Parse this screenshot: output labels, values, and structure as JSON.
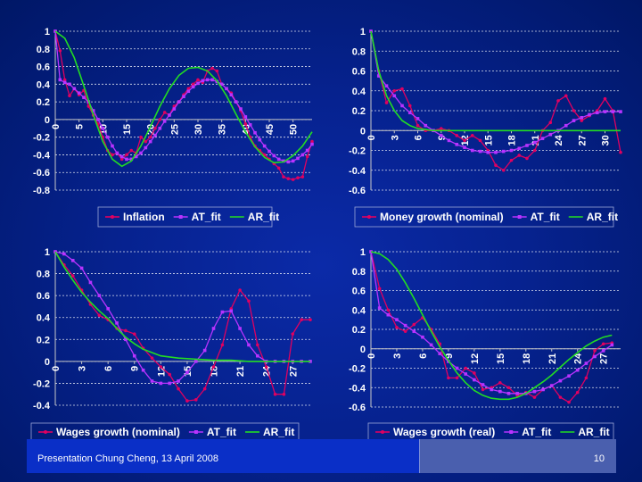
{
  "footer": {
    "presentation": "Presentation Chung Cheng, 13 April 2008",
    "page_number": "10"
  },
  "colors": {
    "background": "#0a23a8",
    "series_primary": "#e00060",
    "series_at_fit": "#b833ff",
    "series_ar_fit": "#22dd22",
    "axis_text": "#ffffff",
    "gridline": "#ffffff"
  },
  "chart_data": [
    {
      "type": "line",
      "title": "",
      "x_ticks": [
        "0",
        "5",
        "10",
        "15",
        "20",
        "25",
        "30",
        "35",
        "40",
        "45",
        "50"
      ],
      "x_tick_values": [
        0,
        5,
        10,
        15,
        20,
        25,
        30,
        35,
        40,
        45,
        50
      ],
      "xlim": [
        0,
        54
      ],
      "ylim": [
        -0.8,
        1
      ],
      "y_ticks": [
        "-0.8",
        "-0.6",
        "-0.4",
        "-0.2",
        "0",
        "0.2",
        "0.4",
        "0.6",
        "0.8",
        "1"
      ],
      "y_tick_values": [
        -0.8,
        -0.6,
        -0.4,
        -0.2,
        0,
        0.2,
        0.4,
        0.6,
        0.8,
        1
      ],
      "series": [
        {
          "name": "Inflation",
          "color": "#e00060",
          "marker": "dot",
          "x": [
            0,
            1,
            2,
            3,
            4,
            5,
            6,
            7,
            8,
            9,
            10,
            11,
            12,
            13,
            14,
            15,
            16,
            17,
            18,
            19,
            20,
            21,
            22,
            23,
            24,
            25,
            26,
            27,
            28,
            29,
            30,
            31,
            32,
            33,
            34,
            35,
            36,
            37,
            38,
            39,
            40,
            41,
            42,
            43,
            44,
            45,
            46,
            47,
            48,
            49,
            50,
            51,
            52,
            53,
            54
          ],
          "y": [
            1,
            0.78,
            0.45,
            0.27,
            0.35,
            0.28,
            0.33,
            0.15,
            0.05,
            -0.05,
            -0.2,
            -0.35,
            -0.4,
            -0.38,
            -0.45,
            -0.4,
            -0.35,
            -0.38,
            -0.2,
            -0.25,
            -0.2,
            -0.1,
            0.0,
            0.08,
            0.05,
            0.15,
            0.2,
            0.28,
            0.35,
            0.4,
            0.45,
            0.42,
            0.55,
            0.58,
            0.55,
            0.4,
            0.35,
            0.3,
            0.2,
            0.1,
            -0.05,
            -0.2,
            -0.3,
            -0.35,
            -0.4,
            -0.45,
            -0.5,
            -0.55,
            -0.65,
            -0.67,
            -0.68,
            -0.66,
            -0.65,
            -0.42,
            -0.25
          ]
        },
        {
          "name": "AT_fit",
          "color": "#b833ff",
          "marker": "square",
          "x": [
            0,
            1,
            2,
            3,
            4,
            5,
            6,
            7,
            8,
            9,
            10,
            11,
            12,
            13,
            14,
            15,
            16,
            17,
            18,
            19,
            20,
            21,
            22,
            23,
            24,
            25,
            26,
            27,
            28,
            29,
            30,
            31,
            32,
            33,
            34,
            35,
            36,
            37,
            38,
            39,
            40,
            41,
            42,
            43,
            44,
            45,
            46,
            47,
            48,
            49,
            50,
            51,
            52,
            53,
            54
          ],
          "y": [
            1,
            0.45,
            0.42,
            0.4,
            0.35,
            0.3,
            0.25,
            0.2,
            0.1,
            0.0,
            -0.1,
            -0.2,
            -0.3,
            -0.38,
            -0.42,
            -0.45,
            -0.45,
            -0.42,
            -0.38,
            -0.32,
            -0.25,
            -0.18,
            -0.1,
            -0.02,
            0.05,
            0.12,
            0.2,
            0.26,
            0.32,
            0.37,
            0.41,
            0.44,
            0.45,
            0.45,
            0.43,
            0.4,
            0.35,
            0.28,
            0.2,
            0.12,
            0.03,
            -0.06,
            -0.15,
            -0.23,
            -0.3,
            -0.36,
            -0.41,
            -0.45,
            -0.47,
            -0.48,
            -0.47,
            -0.44,
            -0.4,
            -0.35,
            -0.28
          ]
        },
        {
          "name": "AR_fit",
          "color": "#22dd22",
          "marker": "none",
          "x": [
            0,
            2,
            4,
            6,
            8,
            10,
            12,
            14,
            16,
            18,
            20,
            22,
            24,
            26,
            28,
            30,
            32,
            34,
            36,
            38,
            40,
            42,
            44,
            46,
            48,
            50,
            52,
            54
          ],
          "y": [
            1,
            0.92,
            0.7,
            0.38,
            0.05,
            -0.25,
            -0.45,
            -0.53,
            -0.47,
            -0.3,
            -0.08,
            0.15,
            0.35,
            0.5,
            0.58,
            0.59,
            0.55,
            0.44,
            0.27,
            0.06,
            -0.14,
            -0.31,
            -0.43,
            -0.49,
            -0.48,
            -0.41,
            -0.3,
            -0.14
          ]
        }
      ],
      "legend": [
        "Inflation",
        "AT_fit",
        "AR_fit"
      ]
    },
    {
      "type": "line",
      "title": "",
      "x_ticks": [
        "0",
        "3",
        "6",
        "9",
        "12",
        "15",
        "18",
        "21",
        "24",
        "27",
        "30"
      ],
      "x_tick_values": [
        0,
        3,
        6,
        9,
        12,
        15,
        18,
        21,
        24,
        27,
        30
      ],
      "xlim": [
        0,
        32
      ],
      "ylim": [
        -0.6,
        1
      ],
      "y_ticks": [
        "-0.6",
        "-0.4",
        "-0.2",
        "0",
        "0.2",
        "0.4",
        "0.6",
        "0.8",
        "1"
      ],
      "y_tick_values": [
        -0.6,
        -0.4,
        -0.2,
        0,
        0.2,
        0.4,
        0.6,
        0.8,
        1
      ],
      "series": [
        {
          "name": "Money growth (nominal)",
          "color": "#e00060",
          "marker": "dot",
          "x": [
            0,
            1,
            2,
            3,
            4,
            5,
            6,
            7,
            8,
            9,
            10,
            11,
            12,
            13,
            14,
            15,
            16,
            17,
            18,
            19,
            20,
            21,
            22,
            23,
            24,
            25,
            26,
            27,
            28,
            29,
            30,
            31,
            32
          ],
          "y": [
            1,
            0.6,
            0.28,
            0.4,
            0.42,
            0.25,
            0.05,
            0.0,
            0.0,
            0.02,
            0.0,
            -0.05,
            -0.1,
            -0.05,
            -0.1,
            -0.2,
            -0.35,
            -0.4,
            -0.3,
            -0.25,
            -0.28,
            -0.2,
            0.0,
            0.08,
            0.3,
            0.35,
            0.2,
            0.1,
            0.15,
            0.2,
            0.32,
            0.2,
            -0.22
          ]
        },
        {
          "name": "AT_fit",
          "color": "#b833ff",
          "marker": "square",
          "x": [
            0,
            1,
            2,
            3,
            4,
            5,
            6,
            7,
            8,
            9,
            10,
            11,
            12,
            13,
            14,
            15,
            16,
            17,
            18,
            19,
            20,
            21,
            22,
            23,
            24,
            25,
            26,
            27,
            28,
            29,
            30,
            31,
            32
          ],
          "y": [
            1,
            0.55,
            0.45,
            0.35,
            0.25,
            0.18,
            0.12,
            0.05,
            0.0,
            -0.05,
            -0.1,
            -0.14,
            -0.17,
            -0.2,
            -0.21,
            -0.22,
            -0.22,
            -0.21,
            -0.2,
            -0.18,
            -0.15,
            -0.12,
            -0.08,
            -0.04,
            0.0,
            0.05,
            0.1,
            0.13,
            0.16,
            0.18,
            0.19,
            0.19,
            0.19
          ]
        },
        {
          "name": "AR_fit",
          "color": "#22dd22",
          "marker": "none",
          "x": [
            0,
            1,
            2,
            3,
            4,
            5,
            6,
            7,
            8,
            9,
            10,
            12,
            14,
            16,
            18,
            20,
            22,
            24,
            26,
            28,
            30,
            32
          ],
          "y": [
            1,
            0.6,
            0.35,
            0.2,
            0.1,
            0.05,
            0.02,
            0.01,
            0.0,
            0.0,
            0.0,
            0.0,
            0.0,
            0.0,
            0.0,
            0.0,
            0.0,
            0.0,
            0.0,
            0.0,
            0.0,
            0.0
          ]
        }
      ],
      "legend": [
        "Money growth (nominal)",
        "AT_fit",
        "AR_fit"
      ]
    },
    {
      "type": "line",
      "title": "",
      "x_ticks": [
        "0",
        "3",
        "6",
        "9",
        "12",
        "15",
        "18",
        "21",
        "24",
        "27"
      ],
      "x_tick_values": [
        0,
        3,
        6,
        9,
        12,
        15,
        18,
        21,
        24,
        27
      ],
      "xlim": [
        0,
        29
      ],
      "ylim": [
        -0.4,
        1
      ],
      "y_ticks": [
        "-0.4",
        "-0.2",
        "0",
        "0.2",
        "0.4",
        "0.6",
        "0.8",
        "1"
      ],
      "y_tick_values": [
        -0.4,
        -0.2,
        0,
        0.2,
        0.4,
        0.6,
        0.8,
        1
      ],
      "series": [
        {
          "name": "Wages growth (nominal)",
          "color": "#e00060",
          "marker": "dot",
          "x": [
            0,
            1,
            2,
            3,
            4,
            5,
            6,
            7,
            8,
            9,
            10,
            11,
            12,
            13,
            14,
            15,
            16,
            17,
            18,
            19,
            20,
            21,
            22,
            23,
            24,
            25,
            26,
            27,
            28,
            29
          ],
          "y": [
            1,
            0.88,
            0.78,
            0.65,
            0.52,
            0.42,
            0.38,
            0.3,
            0.28,
            0.25,
            0.12,
            0.03,
            -0.05,
            -0.12,
            -0.25,
            -0.36,
            -0.35,
            -0.25,
            -0.05,
            0.15,
            0.48,
            0.65,
            0.55,
            0.15,
            -0.05,
            -0.3,
            -0.3,
            0.25,
            0.38,
            0.38
          ]
        },
        {
          "name": "AT_fit",
          "color": "#b833ff",
          "marker": "square",
          "x": [
            0,
            1,
            2,
            3,
            4,
            5,
            6,
            7,
            8,
            9,
            10,
            11,
            12,
            13,
            14,
            15,
            16,
            17,
            18,
            19,
            20,
            21,
            22,
            23,
            24,
            25,
            26,
            27,
            28,
            29
          ],
          "y": [
            1,
            0.98,
            0.92,
            0.85,
            0.72,
            0.6,
            0.48,
            0.35,
            0.2,
            0.05,
            -0.08,
            -0.18,
            -0.2,
            -0.2,
            -0.18,
            -0.1,
            0.0,
            0.1,
            0.3,
            0.45,
            0.46,
            0.3,
            0.15,
            0.05,
            0.0,
            0.0,
            0.0,
            0.0,
            0.0,
            0.0
          ]
        },
        {
          "name": "AR_fit",
          "color": "#22dd22",
          "marker": "none",
          "x": [
            0,
            1,
            2,
            3,
            4,
            5,
            6,
            7,
            8,
            9,
            10,
            11,
            12,
            14,
            16,
            18,
            20,
            22,
            24,
            26,
            29
          ],
          "y": [
            1,
            0.86,
            0.74,
            0.63,
            0.54,
            0.46,
            0.39,
            0.3,
            0.22,
            0.16,
            0.11,
            0.08,
            0.05,
            0.03,
            0.02,
            0.01,
            0.01,
            0.0,
            0.0,
            0.0,
            0.0
          ]
        }
      ],
      "legend": [
        "Wages growth (nominal)",
        "AT_fit",
        "AR_fit"
      ]
    },
    {
      "type": "line",
      "title": "",
      "x_ticks": [
        "0",
        "3",
        "6",
        "9",
        "12",
        "15",
        "18",
        "21",
        "24",
        "27"
      ],
      "x_tick_values": [
        0,
        3,
        6,
        9,
        12,
        15,
        18,
        21,
        24,
        27
      ],
      "xlim": [
        0,
        29
      ],
      "ylim": [
        -0.6,
        1
      ],
      "y_ticks": [
        "-0.6",
        "-0.4",
        "-0.2",
        "0",
        "0.2",
        "0.4",
        "0.6",
        "0.8",
        "1"
      ],
      "y_tick_values": [
        -0.6,
        -0.4,
        -0.2,
        0,
        0.2,
        0.4,
        0.6,
        0.8,
        1
      ],
      "series": [
        {
          "name": "Wages growth (real)",
          "color": "#e00060",
          "marker": "dot",
          "x": [
            0,
            1,
            2,
            3,
            4,
            5,
            6,
            7,
            8,
            9,
            10,
            11,
            12,
            13,
            14,
            15,
            16,
            17,
            18,
            19,
            20,
            21,
            22,
            23,
            24,
            25,
            26,
            27,
            28
          ],
          "y": [
            1,
            0.62,
            0.4,
            0.22,
            0.18,
            0.25,
            0.32,
            0.2,
            0.05,
            -0.3,
            -0.3,
            -0.2,
            -0.25,
            -0.42,
            -0.4,
            -0.35,
            -0.4,
            -0.48,
            -0.45,
            -0.5,
            -0.42,
            -0.38,
            -0.5,
            -0.55,
            -0.45,
            -0.3,
            -0.02,
            0.05,
            0.06
          ]
        },
        {
          "name": "AT_fit",
          "color": "#b833ff",
          "marker": "square",
          "x": [
            0,
            1,
            2,
            3,
            4,
            5,
            6,
            7,
            8,
            9,
            10,
            11,
            12,
            13,
            14,
            15,
            16,
            17,
            18,
            19,
            20,
            21,
            22,
            23,
            24,
            25,
            26,
            27,
            28
          ],
          "y": [
            1,
            0.42,
            0.35,
            0.3,
            0.24,
            0.18,
            0.12,
            0.04,
            -0.05,
            -0.13,
            -0.2,
            -0.26,
            -0.32,
            -0.37,
            -0.42,
            -0.44,
            -0.46,
            -0.46,
            -0.46,
            -0.44,
            -0.42,
            -0.38,
            -0.33,
            -0.28,
            -0.22,
            -0.15,
            -0.08,
            -0.02,
            0.04
          ]
        },
        {
          "name": "AR_fit",
          "color": "#22dd22",
          "marker": "none",
          "x": [
            0,
            1,
            2,
            3,
            4,
            5,
            6,
            7,
            8,
            9,
            10,
            11,
            12,
            13,
            14,
            15,
            16,
            17,
            18,
            19,
            20,
            21,
            22,
            23,
            24,
            25,
            26,
            27,
            28
          ],
          "y": [
            1,
            0.98,
            0.92,
            0.82,
            0.68,
            0.52,
            0.35,
            0.18,
            0.02,
            -0.12,
            -0.25,
            -0.35,
            -0.43,
            -0.48,
            -0.51,
            -0.52,
            -0.52,
            -0.5,
            -0.46,
            -0.4,
            -0.34,
            -0.27,
            -0.19,
            -0.11,
            -0.04,
            0.03,
            0.08,
            0.12,
            0.14
          ]
        }
      ],
      "legend": [
        "Wages growth (real)",
        "AT_fit",
        "AR_fit"
      ]
    }
  ]
}
